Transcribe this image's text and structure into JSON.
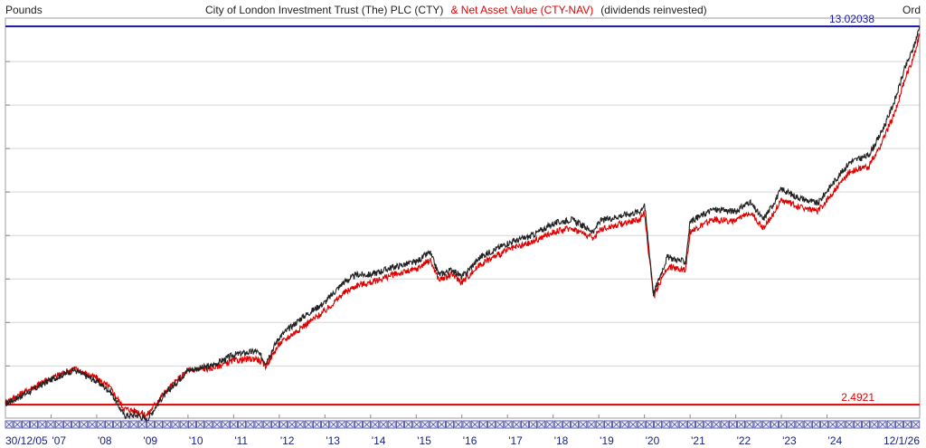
{
  "header": {
    "units_label": "Pounds",
    "title_main": "City of London Investment Trust (The) PLC (CTY)",
    "title_secondary": "& Net Asset Value (CTY-NAV)",
    "title_note": "(dividends reinvested)",
    "scale_label": "Ord"
  },
  "chart_data": {
    "type": "line",
    "title": "City of London Investment Trust (The) PLC (CTY)",
    "xlabel": "",
    "ylabel": "Pounds",
    "y_scale": "log",
    "x_start_label": "30/12/05",
    "x_end_label": "12/1/26",
    "x_ticks": [
      "'07",
      "'08",
      "'09",
      "'10",
      "'11",
      "'12",
      "'13",
      "'14",
      "'15",
      "'16",
      "'17",
      "'18",
      "'19",
      "'20",
      "'21",
      "'22",
      "'23",
      "'24"
    ],
    "grid": true,
    "ylim": [
      2.35,
      13.5
    ],
    "reference_lines": [
      {
        "label": "13.02038",
        "value": 13.02038,
        "color": "#1a1aa0"
      },
      {
        "label": "2.4921",
        "value": 2.4921,
        "color": "#e00000"
      }
    ],
    "series": [
      {
        "name": "City of London Investment Trust (The) PLC (CTY)",
        "color": "#222222",
        "x": [
          2006.0,
          2006.5,
          2007.0,
          2007.5,
          2008.0,
          2008.3,
          2008.6,
          2008.9,
          2009.1,
          2009.4,
          2009.7,
          2010.0,
          2010.5,
          2011.0,
          2011.5,
          2011.7,
          2012.0,
          2012.5,
          2013.0,
          2013.4,
          2013.7,
          2014.0,
          2014.5,
          2015.0,
          2015.3,
          2015.5,
          2015.8,
          2016.0,
          2016.4,
          2016.6,
          2017.0,
          2017.5,
          2018.0,
          2018.4,
          2018.9,
          2019.0,
          2019.5,
          2019.9,
          2020.0,
          2020.2,
          2020.5,
          2020.9,
          2021.0,
          2021.5,
          2022.0,
          2022.3,
          2022.6,
          2022.8,
          2023.0,
          2023.3,
          2023.8,
          2024.0,
          2024.5,
          2024.9,
          2025.1,
          2025.3,
          2025.5,
          2025.7,
          2025.9,
          2026.03
        ],
        "values": [
          2.5,
          2.63,
          2.78,
          2.9,
          2.76,
          2.64,
          2.38,
          2.38,
          2.33,
          2.55,
          2.72,
          2.9,
          2.95,
          3.1,
          3.15,
          3.0,
          3.35,
          3.65,
          3.9,
          4.25,
          4.4,
          4.4,
          4.55,
          4.65,
          4.85,
          4.4,
          4.5,
          4.35,
          4.75,
          4.85,
          5.05,
          5.2,
          5.5,
          5.6,
          5.3,
          5.55,
          5.7,
          5.8,
          6.0,
          4.05,
          4.75,
          4.65,
          5.55,
          5.85,
          5.8,
          6.05,
          5.6,
          5.95,
          6.4,
          6.2,
          6.0,
          6.35,
          7.2,
          7.4,
          7.9,
          8.6,
          9.5,
          10.8,
          11.9,
          13.02
        ]
      },
      {
        "name": "Net Asset Value (CTY-NAV)",
        "color": "#e00000",
        "x": [
          2006.0,
          2006.5,
          2007.0,
          2007.5,
          2008.0,
          2008.3,
          2008.6,
          2008.9,
          2009.1,
          2009.4,
          2009.7,
          2010.0,
          2010.5,
          2011.0,
          2011.5,
          2011.7,
          2012.0,
          2012.5,
          2013.0,
          2013.4,
          2013.7,
          2014.0,
          2014.5,
          2015.0,
          2015.3,
          2015.5,
          2015.8,
          2016.0,
          2016.4,
          2016.6,
          2017.0,
          2017.5,
          2018.0,
          2018.4,
          2018.9,
          2019.0,
          2019.5,
          2019.9,
          2020.0,
          2020.2,
          2020.5,
          2020.9,
          2021.0,
          2021.5,
          2022.0,
          2022.3,
          2022.6,
          2022.8,
          2023.0,
          2023.3,
          2023.8,
          2024.0,
          2024.5,
          2024.9,
          2025.1,
          2025.3,
          2025.5,
          2025.7,
          2025.9,
          2026.03
        ],
        "values": [
          2.52,
          2.66,
          2.8,
          2.92,
          2.8,
          2.68,
          2.45,
          2.42,
          2.38,
          2.58,
          2.74,
          2.9,
          2.92,
          3.02,
          3.05,
          2.95,
          3.25,
          3.5,
          3.75,
          4.05,
          4.2,
          4.25,
          4.4,
          4.5,
          4.7,
          4.3,
          4.4,
          4.25,
          4.6,
          4.7,
          4.9,
          5.05,
          5.3,
          5.4,
          5.15,
          5.35,
          5.5,
          5.6,
          5.75,
          4.0,
          4.55,
          4.5,
          5.3,
          5.6,
          5.55,
          5.8,
          5.4,
          5.7,
          6.1,
          5.95,
          5.8,
          6.1,
          6.9,
          7.05,
          7.5,
          8.2,
          9.0,
          10.3,
          11.4,
          12.6
        ]
      }
    ]
  }
}
